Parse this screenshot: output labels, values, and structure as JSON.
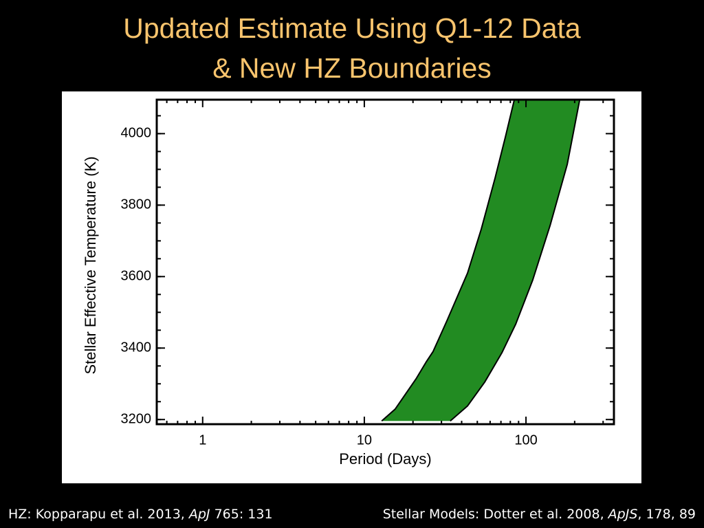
{
  "slide": {
    "title": [
      "Updated Estimate Using Q1-12 Data",
      "& New HZ Boundaries"
    ],
    "footer_left": {
      "text": "HZ: Kopparapu et al. 2013, ",
      "italic": "ApJ",
      "rest": " 765: 131"
    },
    "footer_right": {
      "text": "Stellar Models: Dotter et al. 2008, ",
      "italic": "ApJS",
      "rest": ", 178, 89"
    }
  },
  "chart_data": {
    "type": "band",
    "xlabel": "Period (Days)",
    "ylabel": "Stellar Effective Temperature (K)",
    "xscale": "log",
    "xlim": [
      0.52,
      350
    ],
    "xticks": [
      1,
      10,
      100
    ],
    "ylim": [
      3187,
      4095
    ],
    "yticks": [
      3200,
      3400,
      3600,
      3800,
      4000
    ],
    "color": "#228b22",
    "boundaries": [
      {
        "x": [
          12.8,
          15.5,
          20.9,
          24.2,
          26.6,
          32.4,
          43.5,
          52.9,
          64.4,
          74.5,
          84.7
        ],
        "y": [
          3196,
          3229,
          3314,
          3362,
          3390,
          3476,
          3610,
          3733,
          3876,
          3990,
          4095
        ]
      },
      {
        "x": [
          34.0,
          43.5,
          55.6,
          71.0,
          86.4,
          110,
          141,
          180,
          215
        ],
        "y": [
          3196,
          3238,
          3305,
          3387,
          3467,
          3590,
          3743,
          3914,
          4095
        ]
      }
    ]
  }
}
